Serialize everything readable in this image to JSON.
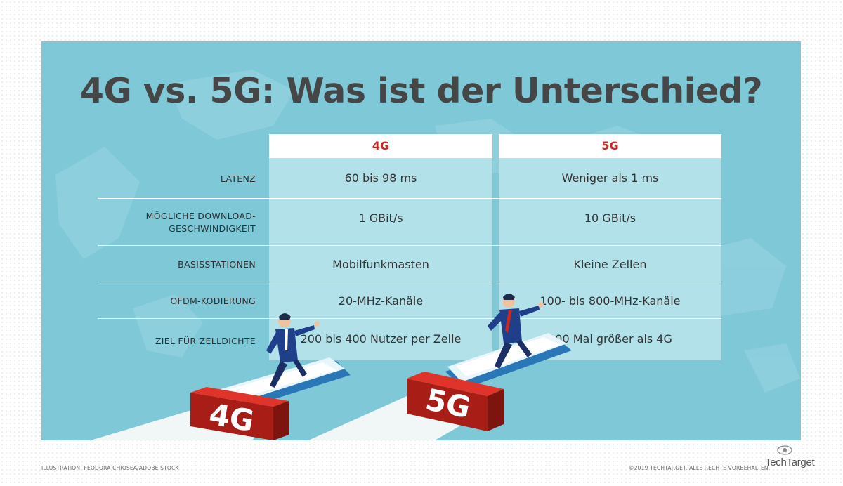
{
  "title": "4G vs. 5G: Was ist der Unterschied?",
  "columns": [
    "4G",
    "5G"
  ],
  "rows": [
    {
      "label": "LATENZ",
      "g4": "60 bis 98 ms",
      "g5": "Weniger als 1 ms"
    },
    {
      "label": "MÖGLICHE DOWNLOAD-",
      "label2": "GESCHWINDIGKEIT",
      "g4": "1 GBit/s",
      "g5": "10 GBit/s"
    },
    {
      "label": "BASISSTATIONEN",
      "g4": "Mobilfunkmasten",
      "g5": "Kleine Zellen"
    },
    {
      "label": "OFDM-KODIERUNG",
      "g4": "20-MHz-Kanäle",
      "g5": "100- bis 800-MHz-Kanäle"
    },
    {
      "label": "ZIEL FÜR ZELLDICHTE",
      "g4": "200 bis 400 Nutzer per Zelle",
      "g5": "100 Mal größer als 4G"
    }
  ],
  "illustration": {
    "left_badge": "4G",
    "right_badge": "5G"
  },
  "footer": {
    "credit": "ILLUSTRATION: FEODORA CHIOSEA/ADOBE STOCK",
    "copyright": "©2019 TECHTARGET. ALLE RECHTE VORBEHALTEN.",
    "brand": "TechTarget"
  },
  "colors": {
    "panel": "#7fc8d8",
    "table": "#b3e1ea",
    "accent": "#c8281e",
    "text": "#333333"
  },
  "icons": [
    "techtarget-eye-logo"
  ]
}
